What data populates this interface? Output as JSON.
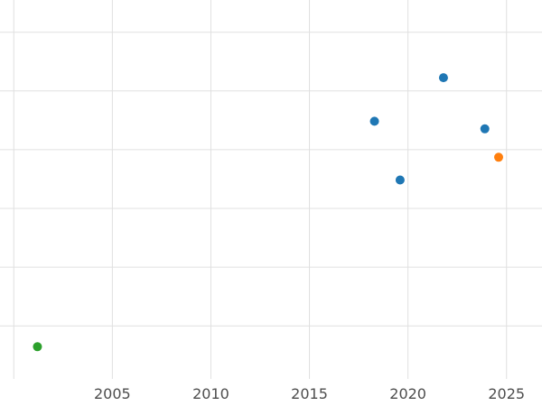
{
  "chart": {
    "background_color": "#ffffff",
    "gridline_color": "#e0e0e0",
    "tick_label_color": "#4d4d4d",
    "tick_label_font_size": 16
  },
  "chart_data": {
    "type": "scatter",
    "title": "",
    "xlabel": "",
    "ylabel": "",
    "grid": true,
    "legend_position": "none",
    "xlim": [
      1999.3,
      2026.8
    ],
    "ylim": [
      0,
      100
    ],
    "x_tick_values": [
      2005,
      2010,
      2015,
      2020,
      2025
    ],
    "x_tick_labels": [
      "2005",
      "2010",
      "2015",
      "2020",
      "2025"
    ],
    "x_gridline_values": [
      2000,
      2005,
      2010,
      2015,
      2020,
      2025
    ],
    "y_gridline_values": [
      14,
      29.5,
      45,
      60.5,
      76,
      91.5
    ],
    "marker_radius": 5,
    "series": [
      {
        "name": "blue",
        "color": "#1f77b4",
        "points": [
          {
            "x": 2018.3,
            "y": 68
          },
          {
            "x": 2019.6,
            "y": 52.5
          },
          {
            "x": 2021.8,
            "y": 79.5
          },
          {
            "x": 2023.9,
            "y": 66
          }
        ]
      },
      {
        "name": "orange",
        "color": "#ff7f0e",
        "points": [
          {
            "x": 2024.6,
            "y": 58.5
          }
        ]
      },
      {
        "name": "green",
        "color": "#2ca02c",
        "points": [
          {
            "x": 2001.2,
            "y": 8.5
          }
        ]
      }
    ]
  }
}
